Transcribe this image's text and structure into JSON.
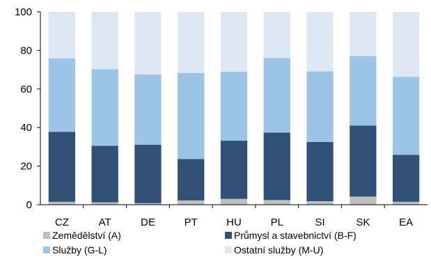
{
  "chart_data": {
    "type": "bar",
    "stacked": true,
    "title": "",
    "xlabel": "",
    "ylabel": "",
    "ylim": [
      0,
      100
    ],
    "yticks": [
      0,
      20,
      40,
      60,
      80,
      100
    ],
    "grid": false,
    "legend_position": "bottom",
    "categories": [
      "CZ",
      "AT",
      "DE",
      "PT",
      "HU",
      "PL",
      "SI",
      "SK",
      "EA"
    ],
    "series": [
      {
        "name": "Zemědělství (A)",
        "color": "#bfbfbf",
        "values": [
          1.5,
          1.2,
          0.8,
          2.2,
          3.0,
          2.4,
          1.8,
          4.2,
          1.5
        ]
      },
      {
        "name": "Průmysl a stavebnictví (B-F)",
        "color": "#2f5178",
        "values": [
          36.3,
          29.3,
          30.3,
          21.5,
          30.2,
          35.0,
          30.7,
          36.8,
          24.3
        ]
      },
      {
        "name": "Služby (G-L)",
        "color": "#9dc3e6",
        "values": [
          38.1,
          39.8,
          36.4,
          44.6,
          35.8,
          38.6,
          36.7,
          36.1,
          40.5
        ]
      },
      {
        "name": "Ostatní služby (M-U)",
        "color": "#dde8f4",
        "values": [
          24.1,
          29.7,
          32.5,
          31.7,
          31.0,
          24.0,
          30.8,
          22.9,
          33.7
        ]
      }
    ]
  }
}
